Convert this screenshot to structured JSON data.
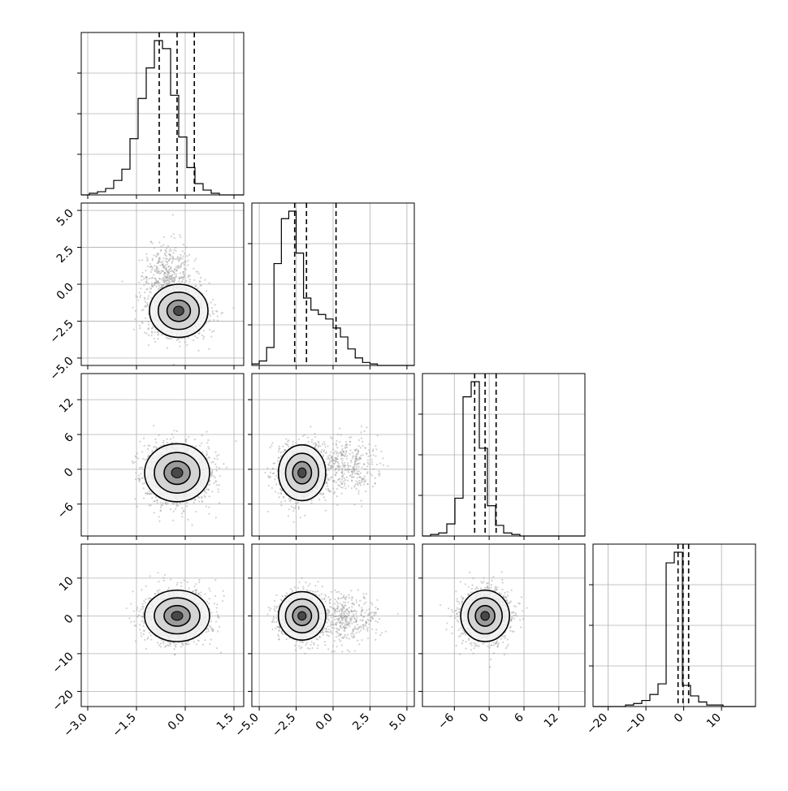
{
  "chart_data": {
    "type": "corner",
    "grid": true,
    "params": [
      {
        "range": [
          -3.2,
          1.8
        ],
        "ticks": [
          -3.0,
          -1.5,
          0.0,
          1.5
        ],
        "tick_labels": [
          "−3.0",
          "−1.5",
          "0.0",
          "1.5"
        ]
      },
      {
        "range": [
          -5.5,
          5.5
        ],
        "ticks": [
          -5.0,
          -2.5,
          0.0,
          2.5,
          5.0
        ],
        "tick_labels": [
          "−5.0",
          "−2.5",
          "0.0",
          "2.5",
          "5.0"
        ]
      },
      {
        "range": [
          -11.5,
          16.5
        ],
        "ticks": [
          -6,
          0,
          6,
          12
        ],
        "tick_labels": [
          "−6",
          "0",
          "6",
          "12"
        ]
      },
      {
        "range": [
          -24,
          19
        ],
        "ticks": [
          -20,
          -10,
          0,
          10
        ],
        "tick_labels": [
          "−20",
          "−10",
          "0",
          "10"
        ]
      }
    ],
    "histograms": [
      {
        "param": 0,
        "edges_start": -3.2,
        "bin_width": 0.25,
        "counts": [
          0,
          1,
          2,
          4,
          9,
          16,
          35,
          60,
          79,
          96,
          91,
          62,
          36,
          17,
          7,
          3,
          1,
          0,
          0,
          0
        ],
        "quantiles": [
          -0.8,
          -0.25,
          0.28
        ]
      },
      {
        "param": 1,
        "edges_start": -5.5,
        "bin_width": 0.5,
        "counts": [
          1,
          3,
          12,
          68,
          98,
          103,
          75,
          45,
          37,
          34,
          31,
          25,
          19,
          11,
          5,
          2,
          1,
          0,
          0,
          0,
          0,
          0
        ],
        "quantiles": [
          -2.6,
          -1.8,
          0.2
        ]
      },
      {
        "param": 2,
        "edges_start": -11.5,
        "bin_width": 1.4,
        "counts": [
          0,
          1,
          2,
          8,
          25,
          92,
          102,
          58,
          20,
          7,
          2,
          1,
          0,
          0,
          0,
          0,
          0,
          0,
          0,
          0
        ],
        "quantiles": [
          -2.5,
          -0.7,
          1.2
        ]
      },
      {
        "param": 3,
        "edges_start": -24,
        "bin_width": 2.15,
        "counts": [
          0,
          0,
          0,
          0,
          1,
          2,
          4,
          8,
          15,
          95,
          102,
          14,
          7,
          3,
          1,
          1,
          0,
          0,
          0,
          0
        ],
        "quantiles": [
          -1.5,
          -0.2,
          1.3
        ]
      }
    ],
    "scatter_2d": [
      {
        "x": 0,
        "y": 1,
        "centers": [
          [
            -0.2,
            -1.8
          ],
          [
            -0.55,
            0.5
          ]
        ],
        "spread": [
          [
            0.45,
            0.9
          ],
          [
            0.35,
            1.1
          ]
        ],
        "weights": [
          0.7,
          0.3
        ]
      },
      {
        "x": 0,
        "y": 2,
        "centers": [
          [
            -0.25,
            -0.6
          ]
        ],
        "spread": [
          [
            0.5,
            2.5
          ]
        ],
        "weights": [
          1.0
        ]
      },
      {
        "x": 1,
        "y": 2,
        "centers": [
          [
            -2.1,
            -0.6
          ],
          [
            0.8,
            0.6
          ]
        ],
        "spread": [
          [
            0.8,
            2.4
          ],
          [
            1.1,
            2.4
          ]
        ],
        "weights": [
          0.72,
          0.28
        ]
      },
      {
        "x": 0,
        "y": 3,
        "centers": [
          [
            -0.25,
            0.0
          ]
        ],
        "spread": [
          [
            0.5,
            3.4
          ]
        ],
        "weights": [
          1.0
        ]
      },
      {
        "x": 1,
        "y": 3,
        "centers": [
          [
            -2.1,
            0.0
          ],
          [
            0.8,
            -0.8
          ]
        ],
        "spread": [
          [
            0.8,
            3.2
          ],
          [
            1.1,
            3.5
          ]
        ],
        "weights": [
          0.72,
          0.28
        ]
      },
      {
        "x": 2,
        "y": 3,
        "centers": [
          [
            -0.7,
            0.0
          ]
        ],
        "spread": [
          [
            2.1,
            3.4
          ]
        ],
        "weights": [
          1.0
        ]
      }
    ]
  }
}
